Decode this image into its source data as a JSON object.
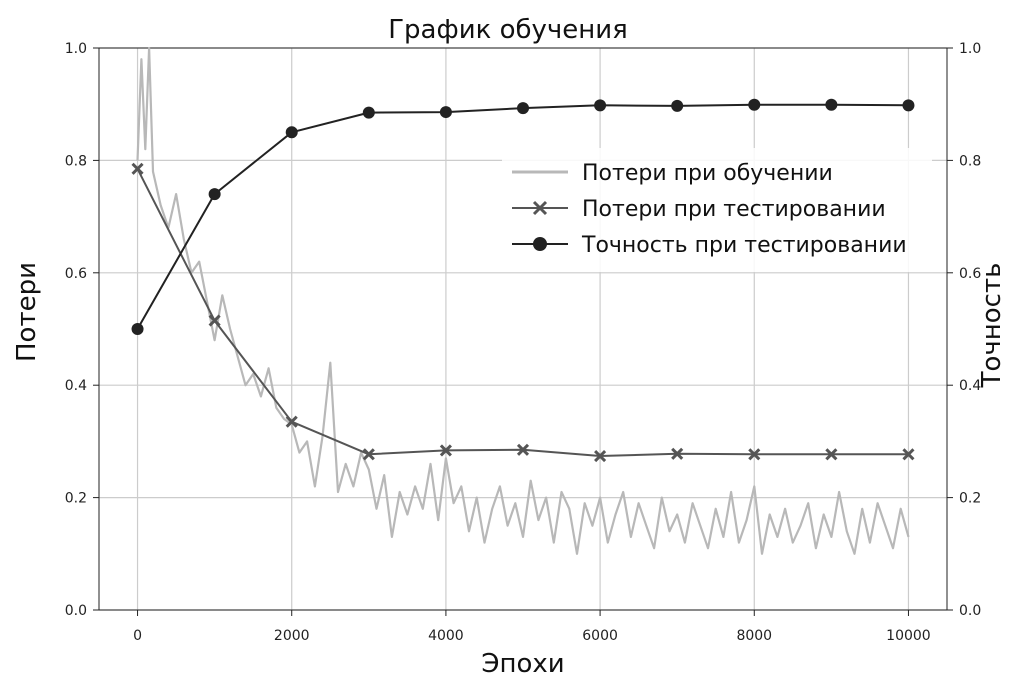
{
  "chart_data": {
    "type": "line",
    "title": "График обучения",
    "xlabel": "Эпохи",
    "ylabel": "Потери",
    "ylabel_right": "Точность",
    "xlim": [
      -500,
      10500
    ],
    "ylim": [
      0.0,
      1.0
    ],
    "ylim_right": [
      0.0,
      1.0
    ],
    "x_ticks": [
      0,
      2000,
      4000,
      6000,
      8000,
      10000
    ],
    "y_ticks": [
      0.0,
      0.2,
      0.4,
      0.6,
      0.8,
      1.0
    ],
    "y_ticks_right": [
      0.0,
      0.2,
      0.4,
      0.6,
      0.8,
      1.0
    ],
    "grid": true,
    "legend_position": "upper-right",
    "colors": {
      "train_loss": "#b8b8b8",
      "test_loss": "#555555",
      "test_accuracy": "#222222",
      "grid": "#cccccc"
    },
    "series": [
      {
        "name": "Потери при обучении",
        "axis": "left",
        "style": "line",
        "x": [
          0,
          50,
          100,
          150,
          200,
          300,
          400,
          500,
          600,
          700,
          800,
          900,
          1000,
          1100,
          1200,
          1300,
          1400,
          1500,
          1600,
          1700,
          1800,
          1900,
          2000,
          2100,
          2200,
          2300,
          2400,
          2500,
          2600,
          2700,
          2800,
          2900,
          3000,
          3100,
          3200,
          3300,
          3400,
          3500,
          3600,
          3700,
          3800,
          3900,
          4000,
          4100,
          4200,
          4300,
          4400,
          4500,
          4600,
          4700,
          4800,
          4900,
          5000,
          5100,
          5200,
          5300,
          5400,
          5500,
          5600,
          5700,
          5800,
          5900,
          6000,
          6100,
          6200,
          6300,
          6400,
          6500,
          6600,
          6700,
          6800,
          6900,
          7000,
          7100,
          7200,
          7300,
          7400,
          7500,
          7600,
          7700,
          7800,
          7900,
          8000,
          8100,
          8200,
          8300,
          8400,
          8500,
          8600,
          8700,
          8800,
          8900,
          9000,
          9100,
          9200,
          9300,
          9400,
          9500,
          9600,
          9700,
          9800,
          9900,
          10000
        ],
        "y": [
          0.8,
          0.98,
          0.82,
          1.0,
          0.78,
          0.72,
          0.68,
          0.74,
          0.66,
          0.6,
          0.62,
          0.55,
          0.48,
          0.56,
          0.5,
          0.45,
          0.4,
          0.42,
          0.38,
          0.43,
          0.36,
          0.34,
          0.33,
          0.28,
          0.3,
          0.22,
          0.31,
          0.44,
          0.21,
          0.26,
          0.22,
          0.28,
          0.25,
          0.18,
          0.24,
          0.13,
          0.21,
          0.17,
          0.22,
          0.18,
          0.26,
          0.16,
          0.27,
          0.19,
          0.22,
          0.14,
          0.2,
          0.12,
          0.18,
          0.22,
          0.15,
          0.19,
          0.13,
          0.23,
          0.16,
          0.2,
          0.12,
          0.21,
          0.18,
          0.1,
          0.19,
          0.15,
          0.2,
          0.12,
          0.17,
          0.21,
          0.13,
          0.19,
          0.15,
          0.11,
          0.2,
          0.14,
          0.17,
          0.12,
          0.19,
          0.15,
          0.11,
          0.18,
          0.13,
          0.21,
          0.12,
          0.16,
          0.22,
          0.1,
          0.17,
          0.13,
          0.18,
          0.12,
          0.15,
          0.19,
          0.11,
          0.17,
          0.13,
          0.21,
          0.14,
          0.1,
          0.18,
          0.12,
          0.19,
          0.15,
          0.11,
          0.18,
          0.13
        ]
      },
      {
        "name": "Потери при тестировании",
        "axis": "left",
        "style": "line-x",
        "x": [
          0,
          1000,
          2000,
          3000,
          4000,
          5000,
          6000,
          7000,
          8000,
          9000,
          10000
        ],
        "y": [
          0.785,
          0.515,
          0.335,
          0.277,
          0.284,
          0.285,
          0.274,
          0.278,
          0.277,
          0.277,
          0.277
        ]
      },
      {
        "name": "Точность при тестировании",
        "axis": "right",
        "style": "line-dot",
        "x": [
          0,
          1000,
          2000,
          3000,
          4000,
          5000,
          6000,
          7000,
          8000,
          9000,
          10000
        ],
        "y": [
          0.5,
          0.74,
          0.85,
          0.885,
          0.886,
          0.893,
          0.898,
          0.897,
          0.899,
          0.899,
          0.898
        ]
      }
    ]
  }
}
